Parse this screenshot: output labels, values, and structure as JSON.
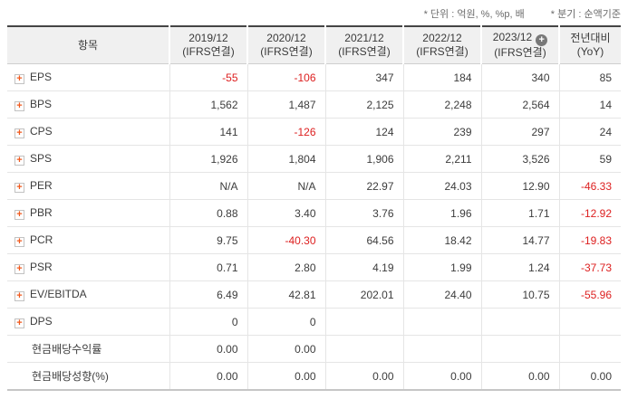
{
  "legend": {
    "unit_note": "* 단위 : 억원, %, %p, 배",
    "basis_note": "* 분기 : 순액기준"
  },
  "colors": {
    "negative": "#dd2020",
    "expand-plus": "#f05a1e",
    "header-bg": "#f0f0f0",
    "top-border": "#454545"
  },
  "table": {
    "item_header": "항목",
    "columns": [
      {
        "line1": "2019/12",
        "line2": "(IFRS연결)",
        "has_plus_icon": false
      },
      {
        "line1": "2020/12",
        "line2": "(IFRS연결)",
        "has_plus_icon": false
      },
      {
        "line1": "2021/12",
        "line2": "(IFRS연결)",
        "has_plus_icon": false
      },
      {
        "line1": "2022/12",
        "line2": "(IFRS연결)",
        "has_plus_icon": false
      },
      {
        "line1": "2023/12",
        "line2": "(IFRS연결)",
        "has_plus_icon": true
      },
      {
        "line1": "전년대비",
        "line2": "(YoY)",
        "has_plus_icon": false
      }
    ],
    "rows": [
      {
        "label": "EPS",
        "expandable": true,
        "values": [
          "-55",
          "-106",
          "347",
          "184",
          "340",
          "85"
        ]
      },
      {
        "label": "BPS",
        "expandable": true,
        "values": [
          "1,562",
          "1,487",
          "2,125",
          "2,248",
          "2,564",
          "14"
        ]
      },
      {
        "label": "CPS",
        "expandable": true,
        "values": [
          "141",
          "-126",
          "124",
          "239",
          "297",
          "24"
        ]
      },
      {
        "label": "SPS",
        "expandable": true,
        "values": [
          "1,926",
          "1,804",
          "1,906",
          "2,211",
          "3,526",
          "59"
        ]
      },
      {
        "label": "PER",
        "expandable": true,
        "values": [
          "N/A",
          "N/A",
          "22.97",
          "24.03",
          "12.90",
          "-46.33"
        ]
      },
      {
        "label": "PBR",
        "expandable": true,
        "values": [
          "0.88",
          "3.40",
          "3.76",
          "1.96",
          "1.71",
          "-12.92"
        ]
      },
      {
        "label": "PCR",
        "expandable": true,
        "values": [
          "9.75",
          "-40.30",
          "64.56",
          "18.42",
          "14.77",
          "-19.83"
        ]
      },
      {
        "label": "PSR",
        "expandable": true,
        "values": [
          "0.71",
          "2.80",
          "4.19",
          "1.99",
          "1.24",
          "-37.73"
        ]
      },
      {
        "label": "EV/EBITDA",
        "expandable": true,
        "values": [
          "6.49",
          "42.81",
          "202.01",
          "24.40",
          "10.75",
          "-55.96"
        ]
      },
      {
        "label": "DPS",
        "expandable": true,
        "values": [
          "0",
          "0",
          "",
          "",
          "",
          ""
        ]
      },
      {
        "label": "현금배당수익률",
        "expandable": false,
        "values": [
          "0.00",
          "0.00",
          "",
          "",
          "",
          ""
        ]
      },
      {
        "label": "현금배당성향(%)",
        "expandable": false,
        "values": [
          "0.00",
          "0.00",
          "0.00",
          "0.00",
          "0.00",
          "0.00"
        ]
      }
    ]
  }
}
